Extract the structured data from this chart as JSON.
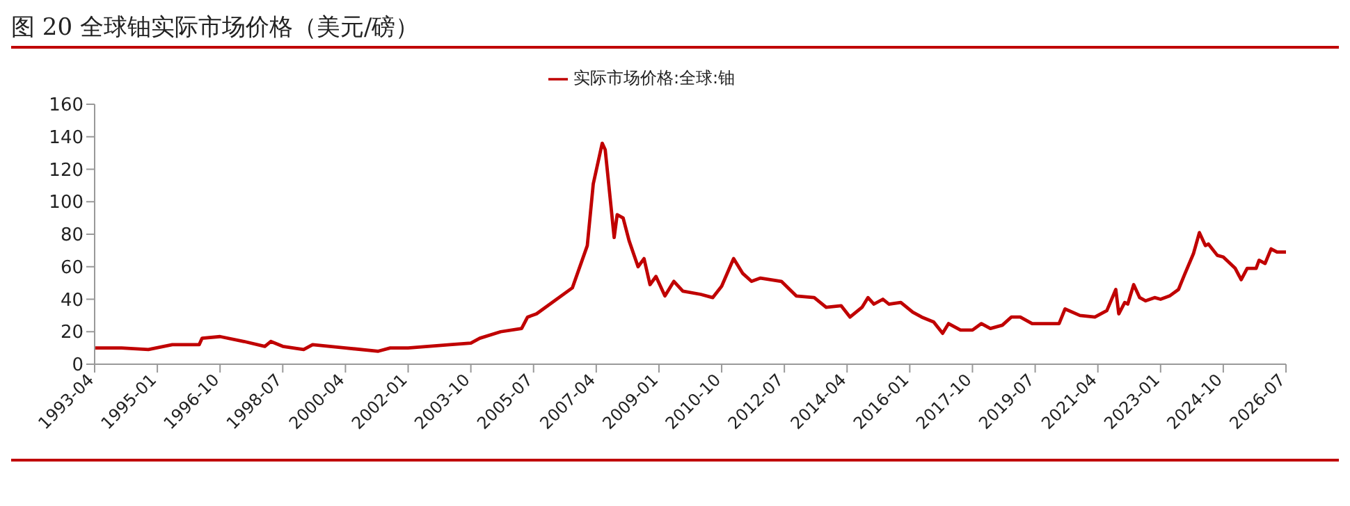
{
  "chart_data": {
    "type": "line",
    "title": "图 20 全球铀实际市场价格（美元/磅）",
    "x": [
      "1993-04",
      "1994-01",
      "1994-10",
      "1995-06",
      "1996-03",
      "1996-04",
      "1996-10",
      "1997-06",
      "1998-01",
      "1998-03",
      "1998-07",
      "1999-02",
      "1999-05",
      "2000-04",
      "2001-03",
      "2001-07",
      "2002-01",
      "2003-03",
      "2003-10",
      "2004-01",
      "2004-08",
      "2005-03",
      "2005-05",
      "2005-08",
      "2006-08",
      "2007-01",
      "2007-03",
      "2007-06",
      "2007-07",
      "2007-10",
      "2007-11",
      "2008-01",
      "2008-03",
      "2008-06",
      "2008-08",
      "2008-10",
      "2008-12",
      "2009-03",
      "2009-06",
      "2009-09",
      "2010-03",
      "2010-07",
      "2010-10",
      "2011-02",
      "2011-05",
      "2011-08",
      "2011-11",
      "2012-06",
      "2012-11",
      "2013-05",
      "2013-09",
      "2014-02",
      "2014-05",
      "2014-09",
      "2014-11",
      "2015-01",
      "2015-04",
      "2015-06",
      "2015-10",
      "2016-02",
      "2016-05",
      "2016-09",
      "2016-12",
      "2017-02",
      "2017-06",
      "2017-10",
      "2018-01",
      "2018-04",
      "2018-08",
      "2018-11",
      "2019-02",
      "2019-06",
      "2020-03",
      "2020-05",
      "2020-10",
      "2021-03",
      "2021-07",
      "2021-10",
      "2021-11",
      "2022-01",
      "2022-02",
      "2022-04",
      "2022-06",
      "2022-08",
      "2022-11",
      "2023-01",
      "2023-04",
      "2023-07",
      "2023-09",
      "2023-12",
      "2024-02",
      "2024-04",
      "2024-05",
      "2024-08",
      "2024-10",
      "2025-02",
      "2025-04",
      "2025-06",
      "2025-09",
      "2025-10",
      "2025-12",
      "2026-02",
      "2026-04",
      "2026-07"
    ],
    "series": [
      {
        "name": "实际市场价格:全球:铀",
        "color": "#c00000",
        "values": [
          10,
          10,
          9,
          12,
          12,
          16,
          17,
          14,
          11,
          14,
          11,
          9,
          12,
          10,
          8,
          10,
          10,
          12,
          13,
          16,
          20,
          22,
          29,
          31,
          47,
          73,
          111,
          136,
          132,
          78,
          92,
          90,
          76,
          60,
          65,
          49,
          54,
          42,
          51,
          45,
          43,
          41,
          48,
          65,
          56,
          51,
          53,
          51,
          42,
          41,
          35,
          36,
          29,
          35,
          41,
          37,
          40,
          37,
          38,
          32,
          29,
          26,
          19,
          25,
          21,
          21,
          25,
          22,
          24,
          29,
          29,
          25,
          25,
          34,
          30,
          29,
          33,
          46,
          31,
          38,
          37,
          49,
          41,
          39,
          41,
          40,
          42,
          46,
          55,
          68,
          81,
          73,
          74,
          67,
          66,
          59,
          52,
          59,
          59,
          64,
          62,
          71,
          69,
          69
        ]
      }
    ],
    "xlim": [
      "1993-04",
      "2026-07"
    ],
    "xticks": [
      "1993-04",
      "1995-01",
      "1996-10",
      "1998-07",
      "2000-04",
      "2002-01",
      "2003-10",
      "2005-07",
      "2007-04",
      "2009-01",
      "2010-10",
      "2012-07",
      "2014-04",
      "2016-01",
      "2017-10",
      "2019-07",
      "2021-04",
      "2023-01",
      "2024-10",
      "2026-07"
    ],
    "ylim": [
      0,
      160
    ],
    "yticks": [
      0,
      20,
      40,
      60,
      80,
      100,
      120,
      140,
      160
    ],
    "legend": "top",
    "grid": false,
    "marker": "none",
    "line_style": "solid"
  }
}
